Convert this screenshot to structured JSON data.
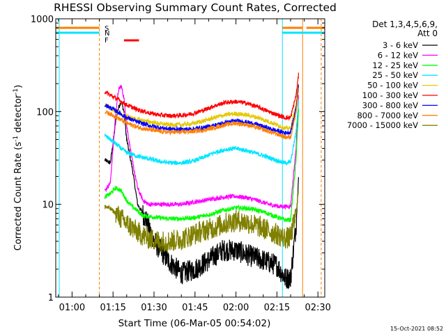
{
  "chart_data": {
    "type": "line",
    "title": "RHESSI Observing Summary Count Rates, Corrected",
    "xlabel": "Start Time (06-Mar-05 00:54:02)",
    "ylabel": "Corrected Count Rate (s⁻¹ detector⁻¹)",
    "ylabel_parts": [
      "Corrected Count Rate (s",
      "-1",
      " detector",
      "-1",
      ")"
    ],
    "yscale": "log",
    "ylim": [
      1,
      1000
    ],
    "y_ticks": [
      1,
      10,
      100,
      1000
    ],
    "y_tick_labels": [
      "1",
      "10",
      "100",
      "1000"
    ],
    "xlim_minutes": [
      54.03,
      152.5
    ],
    "x_ticks": [
      60,
      75,
      90,
      105,
      120,
      135,
      150
    ],
    "x_tick_labels": [
      "01:00",
      "01:15",
      "01:30",
      "01:45",
      "02:00",
      "02:15",
      "02:30"
    ],
    "legend_header": [
      "Det 1,3,4,5,6,9,",
      "Att 0"
    ],
    "legend_position": "right",
    "timestamp": "15-Oct-2021 08:52",
    "flag_letters": [
      {
        "letter": "S",
        "color": "#ff7f00"
      },
      {
        "letter": "N",
        "color": "#00e5ff"
      },
      {
        "letter": "F",
        "color": "#ff0000"
      }
    ],
    "flag_bars": [
      {
        "flag": "S",
        "color": "#ff7f00",
        "x_ranges": [
          [
            54.03,
            70.0
          ],
          [
            137.0,
            144.4
          ],
          [
            145.8,
            152.5
          ]
        ]
      },
      {
        "flag": "N",
        "color": "#00e5ff",
        "x_ranges": [
          [
            54.03,
            70.0
          ],
          [
            137.0,
            152.5
          ]
        ]
      },
      {
        "flag": "F",
        "color": "#ff0000",
        "x_ranges": [
          [
            79.0,
            84.5
          ]
        ]
      }
    ],
    "vertical_lines": [
      {
        "x": 55.3,
        "color": "#00e5ff",
        "style": "solid"
      },
      {
        "x": 70.0,
        "color": "#ff7f00",
        "style": "dashed"
      },
      {
        "x": 137.0,
        "color": "#00e5ff",
        "style": "solid"
      },
      {
        "x": 144.4,
        "color": "#ff7f00",
        "style": "solid"
      },
      {
        "x": 151.2,
        "color": "#ff7f00",
        "style": "dashed"
      }
    ],
    "series": [
      {
        "name": "3 - 6 keV",
        "color": "#000000",
        "x": [
          72,
          74,
          75,
          76,
          77,
          78,
          79,
          80,
          82,
          84,
          87,
          90,
          95,
          100,
          105,
          110,
          115,
          120,
          125,
          130,
          135,
          138,
          140,
          142,
          143
        ],
        "y": [
          30,
          28,
          45,
          80,
          110,
          130,
          100,
          50,
          25,
          10,
          7,
          4,
          2.5,
          1.8,
          2,
          2.5,
          3.2,
          3.2,
          2.8,
          2.5,
          2.2,
          1.6,
          1.6,
          6,
          22
        ]
      },
      {
        "name": "6 - 12 keV",
        "color": "#ff00ff",
        "x": [
          72,
          74,
          75,
          76,
          77,
          78,
          79,
          80,
          82,
          84,
          86,
          88,
          92,
          96,
          100,
          104,
          108,
          112,
          116,
          120,
          124,
          128,
          132,
          136,
          138,
          140,
          142,
          143
        ],
        "y": [
          14,
          17,
          40,
          100,
          170,
          190,
          140,
          70,
          30,
          15,
          11,
          10,
          10,
          10,
          10,
          10.5,
          11,
          11.5,
          12,
          12.2,
          11.8,
          11,
          10,
          9.5,
          9.5,
          9.5,
          40,
          160
        ]
      },
      {
        "name": "12 - 25 keV",
        "color": "#00ff00",
        "x": [
          72,
          74,
          76,
          78,
          80,
          82,
          84,
          86,
          90,
          95,
          100,
          105,
          110,
          115,
          120,
          125,
          130,
          135,
          138,
          140,
          142,
          143
        ],
        "y": [
          12,
          13,
          15,
          14,
          11,
          9.5,
          8.5,
          7.5,
          7.3,
          7,
          7,
          7.2,
          7.7,
          8.6,
          9.2,
          9,
          8.3,
          7.3,
          6.8,
          6.8,
          30,
          120
        ]
      },
      {
        "name": "25 - 50 keV",
        "color": "#00e5ff",
        "x": [
          72,
          74,
          76,
          78,
          80,
          84,
          88,
          92,
          96,
          100,
          104,
          108,
          112,
          116,
          120,
          124,
          128,
          132,
          136,
          138,
          140,
          142,
          143
        ],
        "y": [
          55,
          50,
          45,
          40,
          36,
          33,
          31,
          29,
          28,
          28,
          29,
          32,
          36,
          39,
          40,
          38,
          35,
          32,
          29,
          28,
          28.5,
          60,
          140
        ]
      },
      {
        "name": "50 - 100 keV",
        "color": "#e5c800",
        "x": [
          72,
          74,
          76,
          78,
          80,
          84,
          88,
          92,
          96,
          100,
          104,
          108,
          112,
          116,
          120,
          124,
          128,
          132,
          136,
          138,
          140,
          142,
          143
        ],
        "y": [
          120,
          110,
          100,
          93,
          88,
          82,
          78,
          74,
          72,
          72,
          74,
          79,
          86,
          92,
          95,
          92,
          86,
          78,
          70,
          66,
          66,
          120,
          220
        ]
      },
      {
        "name": "100 - 300 keV",
        "color": "#ff0000",
        "x": [
          72,
          74,
          76,
          78,
          80,
          84,
          88,
          92,
          96,
          100,
          104,
          108,
          112,
          116,
          120,
          124,
          128,
          132,
          136,
          138,
          140,
          142,
          143
        ],
        "y": [
          165,
          150,
          140,
          128,
          118,
          105,
          97,
          92,
          90,
          91,
          95,
          103,
          115,
          125,
          128,
          123,
          112,
          100,
          90,
          86,
          86,
          150,
          260
        ]
      },
      {
        "name": "300 - 800 keV",
        "color": "#0000ff",
        "x": [
          72,
          74,
          76,
          78,
          80,
          84,
          88,
          92,
          96,
          100,
          104,
          108,
          112,
          116,
          120,
          124,
          128,
          132,
          136,
          138,
          140,
          142,
          143
        ],
        "y": [
          118,
          110,
          102,
          94,
          86,
          77,
          71,
          67,
          65,
          64,
          65,
          67,
          71,
          76,
          79,
          77,
          72,
          66,
          61,
          59,
          60,
          110,
          200
        ]
      },
      {
        "name": "800 - 7000 keV",
        "color": "#ff7f00",
        "x": [
          72,
          74,
          76,
          78,
          80,
          84,
          88,
          92,
          96,
          100,
          104,
          108,
          112,
          116,
          120,
          124,
          128,
          132,
          136,
          138,
          140,
          142,
          143
        ],
        "y": [
          100,
          94,
          88,
          81,
          75,
          68,
          64,
          61,
          60,
          60,
          61,
          63,
          67,
          72,
          75,
          72,
          67,
          61,
          56,
          53,
          53,
          100,
          180
        ]
      },
      {
        "name": "7000 - 15000 keV",
        "color": "#808000",
        "x": [
          72,
          74,
          76,
          78,
          80,
          82,
          84,
          86,
          88,
          92,
          96,
          100,
          104,
          108,
          112,
          116,
          120,
          124,
          128,
          132,
          136,
          138,
          140,
          142,
          143
        ],
        "y": [
          9.5,
          9,
          8,
          7,
          6.2,
          5.6,
          5,
          4.6,
          4.3,
          4,
          4,
          4.2,
          4.7,
          5.2,
          5.6,
          6.2,
          6.7,
          6.4,
          5.8,
          5.2,
          4.6,
          4.3,
          4.4,
          8,
          15
        ]
      }
    ]
  }
}
